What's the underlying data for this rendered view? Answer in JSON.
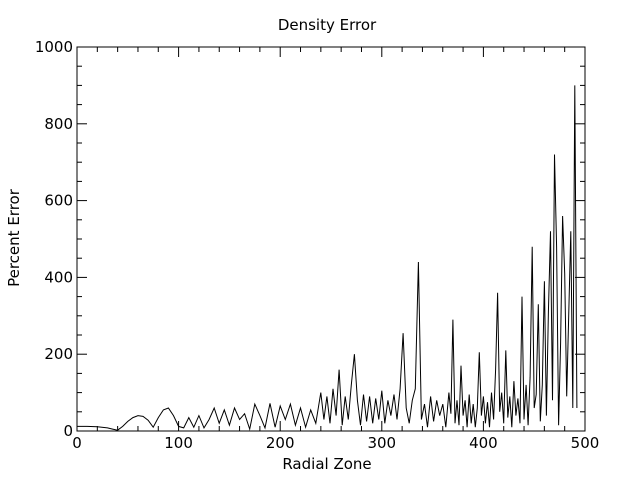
{
  "chart_data": {
    "type": "line",
    "title": "Density Error",
    "xlabel": "Radial Zone",
    "ylabel": "Percent Error",
    "xlim": [
      0,
      500
    ],
    "ylim": [
      0,
      1000
    ],
    "x_ticks": [
      0,
      100,
      200,
      300,
      400,
      500
    ],
    "y_ticks": [
      0,
      200,
      400,
      600,
      800,
      1000
    ],
    "x_tick_labels": [
      "0",
      "100",
      "200",
      "300",
      "400",
      "500"
    ],
    "y_tick_labels": [
      "0",
      "200",
      "400",
      "600",
      "800",
      "1000"
    ],
    "grid": false,
    "legend": "none",
    "line_color": "#000000",
    "series": [
      {
        "x": [
          0,
          10,
          20,
          30,
          35,
          40,
          45,
          50,
          55,
          60,
          65,
          70,
          75,
          80,
          85,
          90,
          95,
          100,
          105,
          110,
          115,
          120,
          125,
          130,
          135,
          140,
          145,
          150,
          155,
          160,
          165,
          170,
          175,
          180,
          185,
          190,
          195,
          200,
          205,
          210,
          215,
          220,
          225,
          230,
          235,
          240,
          243,
          246,
          249,
          252,
          255,
          258,
          261,
          264,
          267,
          270,
          273,
          276,
          279,
          282,
          285,
          288,
          291,
          294,
          297,
          300,
          303,
          306,
          309,
          312,
          315,
          318,
          321,
          324,
          327,
          330,
          333,
          336,
          339,
          342,
          345,
          348,
          351,
          354,
          357,
          360,
          363,
          366,
          368,
          370,
          372,
          374,
          376,
          378,
          380,
          382,
          384,
          386,
          388,
          390,
          392,
          394,
          396,
          398,
          400,
          402,
          404,
          406,
          408,
          410,
          412,
          414,
          416,
          418,
          420,
          422,
          424,
          426,
          428,
          430,
          432,
          434,
          436,
          438,
          440,
          442,
          444,
          446,
          448,
          450,
          452,
          454,
          456,
          458,
          460,
          462,
          464,
          466,
          468,
          470,
          472,
          474,
          476,
          478,
          480,
          482,
          484,
          486,
          488,
          490,
          492
        ],
        "y": [
          12,
          12,
          11,
          8,
          5,
          2,
          12,
          25,
          35,
          40,
          38,
          28,
          10,
          35,
          55,
          60,
          40,
          12,
          8,
          35,
          10,
          40,
          8,
          30,
          60,
          20,
          55,
          15,
          60,
          30,
          45,
          5,
          70,
          40,
          8,
          72,
          10,
          65,
          30,
          70,
          15,
          60,
          10,
          55,
          20,
          100,
          30,
          90,
          20,
          110,
          40,
          160,
          15,
          90,
          30,
          120,
          200,
          80,
          15,
          95,
          25,
          90,
          20,
          85,
          30,
          105,
          20,
          80,
          40,
          95,
          30,
          110,
          255,
          60,
          20,
          80,
          110,
          440,
          30,
          70,
          10,
          90,
          25,
          80,
          40,
          70,
          10,
          100,
          45,
          290,
          20,
          80,
          15,
          170,
          40,
          80,
          10,
          95,
          20,
          70,
          10,
          60,
          205,
          40,
          90,
          20,
          75,
          10,
          100,
          30,
          160,
          360,
          50,
          100,
          20,
          210,
          35,
          90,
          10,
          130,
          40,
          85,
          20,
          350,
          30,
          120,
          15,
          140,
          480,
          60,
          95,
          330,
          25,
          120,
          390,
          40,
          310,
          520,
          80,
          720,
          480,
          15,
          230,
          560,
          410,
          90,
          300,
          520,
          60,
          900,
          60
        ]
      }
    ]
  }
}
